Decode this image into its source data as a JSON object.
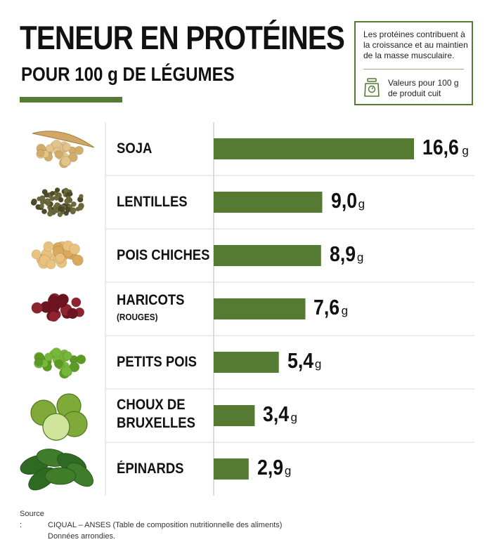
{
  "header": {
    "title": "TENEUR EN PROTÉINES",
    "subtitle": "POUR 100 g DE LÉGUMES"
  },
  "info": {
    "note": "Les protéines contribuent à la croissance et au maintien de la masse musculaire.",
    "cooked": "Valeurs pour 100 g de produit cuit",
    "icon": "kitchen-scale-icon"
  },
  "colors": {
    "accent": "#557a32",
    "bar": "#557a32",
    "grid": "#d9d9d9"
  },
  "chart_data": {
    "type": "bar",
    "orientation": "horizontal",
    "unit": "g",
    "categories": [
      "SOJA",
      "LENTILLES",
      "POIS CHICHES",
      "HARICOTS",
      "PETITS POIS",
      "CHOUX DE BRUXELLES",
      "ÉPINARDS"
    ],
    "display_labels": [
      {
        "line1": "SOJA",
        "line2": "",
        "sub": ""
      },
      {
        "line1": "LENTILLES",
        "line2": "",
        "sub": ""
      },
      {
        "line1": "POIS CHICHES",
        "line2": "",
        "sub": ""
      },
      {
        "line1": "HARICOTS",
        "line2": "",
        "sub": "(ROUGES)"
      },
      {
        "line1": "PETITS POIS",
        "line2": "",
        "sub": ""
      },
      {
        "line1": "CHOUX DE",
        "line2": "BRUXELLES",
        "sub": ""
      },
      {
        "line1": "ÉPINARDS",
        "line2": "",
        "sub": ""
      }
    ],
    "values": [
      16.6,
      9.0,
      8.9,
      7.6,
      5.4,
      3.4,
      2.9
    ],
    "value_labels": [
      "16,6",
      "9,0",
      "8,9",
      "7,6",
      "5,4",
      "3,4",
      "2,9"
    ],
    "icons": [
      "soybean-icon",
      "lentils-icon",
      "chickpeas-icon",
      "red-beans-icon",
      "green-peas-icon",
      "brussels-sprouts-icon",
      "spinach-icon"
    ],
    "xlim": [
      0,
      16.6
    ],
    "grid": true
  },
  "source": {
    "label": "Source :",
    "text": "CIQUAL – ANSES (Table de composition nutritionnelle des aliments)",
    "note": "Données arrondies."
  }
}
